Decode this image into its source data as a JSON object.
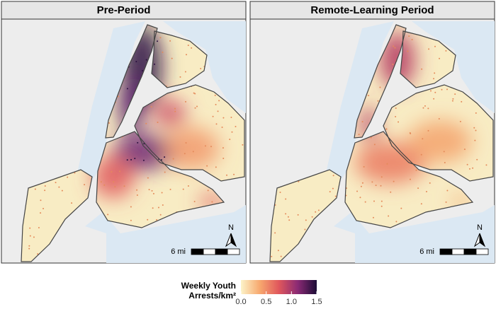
{
  "panels": [
    {
      "title": "Pre-Period"
    },
    {
      "title": "Remote-Learning Period"
    }
  ],
  "scale_bar": {
    "label": "6 mi"
  },
  "north_arrow": {
    "label": "N"
  },
  "legend": {
    "title": [
      "Weekly Youth",
      "Arrests/km²"
    ],
    "lim": [
      0,
      1.5
    ],
    "ticks": [
      {
        "value": 0,
        "label": "0.0"
      },
      0.5,
      {
        "value": 1,
        "label": "1.0"
      },
      1.5
    ],
    "colors": [
      "#fcf3c8",
      "#f7a86e",
      "#e0575c",
      "#8a2a74",
      "#1b0c36"
    ]
  }
}
